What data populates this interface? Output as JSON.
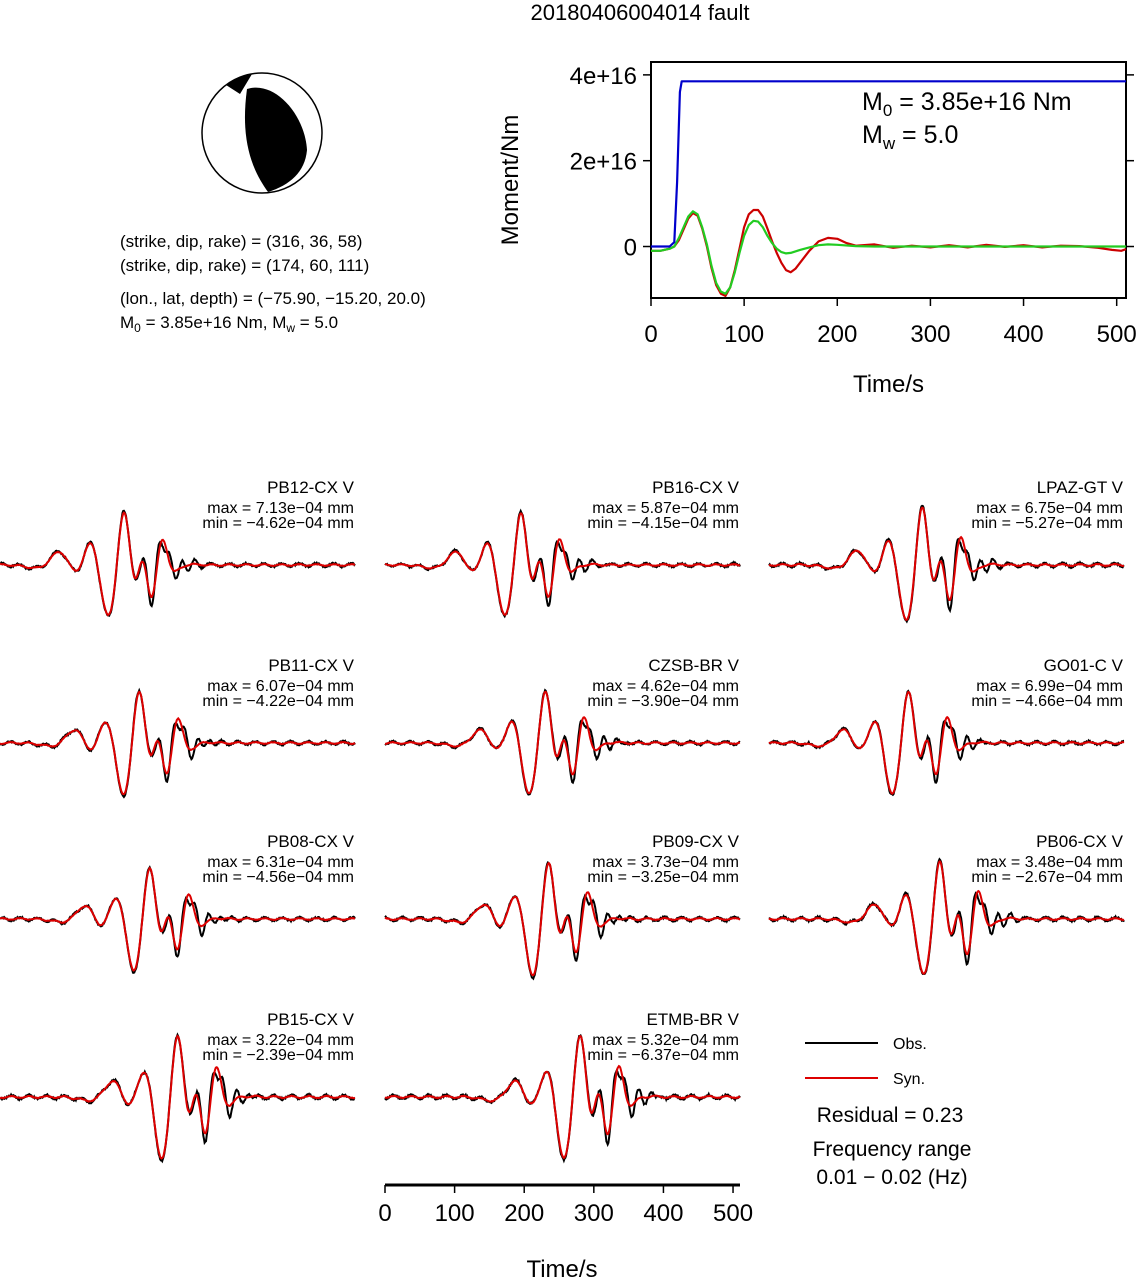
{
  "title": "20180406004014 fault",
  "focal": {
    "line1": "(strike, dip, rake) = (316, 36, 58)",
    "line2": "(strike, dip, rake) = (174, 60, 111)",
    "line3": "(lon., lat, depth) = (−75.90, −15.20, 20.0)",
    "line4_m0": "M",
    "line4_m0_sub": "0",
    "line4_m0_val": " = 3.85e+16 Nm, M",
    "line4_mw_sub": "w",
    "line4_mw_val": " = 5.0"
  },
  "moment": {
    "ylabel": "Moment/Nm",
    "xlabel": "Time/s",
    "yticks": [
      "4e+16",
      "2e+16",
      "0"
    ],
    "ytick_values": [
      4e+16,
      2e+16,
      0
    ],
    "xticks": [
      "0",
      "100",
      "200",
      "300",
      "400",
      "500"
    ],
    "xtick_values": [
      0,
      100,
      200,
      300,
      400,
      500
    ],
    "xlim": [
      0,
      510
    ],
    "ylim": [
      -1.2e+16,
      4.3e+16
    ],
    "m0_label": "M",
    "m0_sub": "0",
    "m0_value": " = 3.85e+16 Nm",
    "mw_label": "M",
    "mw_sub": "w",
    "mw_value": " = 5.0"
  },
  "chart_data": {
    "type": "line",
    "moment_function": {
      "x": [
        0,
        20,
        25,
        28,
        31,
        33,
        36,
        510
      ],
      "y": [
        0,
        0,
        1000000000000000.0,
        1.5e+16,
        3.6e+16,
        3.85e+16,
        3.85e+16,
        3.85e+16
      ],
      "color": "#0000cc"
    },
    "moment_rate_green": {
      "color": "#22cc22",
      "x": [
        0,
        10,
        20,
        25,
        30,
        35,
        40,
        45,
        50,
        55,
        60,
        65,
        70,
        75,
        80,
        85,
        90,
        95,
        100,
        105,
        110,
        115,
        120,
        125,
        130,
        135,
        140,
        145,
        150,
        160,
        170,
        180,
        190,
        200,
        220,
        240,
        260,
        280,
        300,
        350,
        400,
        450,
        510
      ],
      "y": [
        -1000000000000000.0,
        -1000000000000000.0,
        -500000000000000.0,
        0,
        2000000000000000.0,
        4500000000000000.0,
        7000000000000000.0,
        8200000000000000.0,
        7500000000000000.0,
        4500000000000000.0,
        500000000000000.0,
        -4500000000000000.0,
        -8500000000000000.0,
        -1.05e+16,
        -1.1e+16,
        -9500000000000000.0,
        -6000000000000000.0,
        -1500000000000000.0,
        2500000000000000.0,
        5000000000000000.0,
        6000000000000000.0,
        5800000000000000.0,
        4500000000000000.0,
        2500000000000000.0,
        800000000000000.0,
        -500000000000000.0,
        -1300000000000000.0,
        -1600000000000000.0,
        -1500000000000000.0,
        -800000000000000.0,
        -200000000000000.0,
        300000000000000.0,
        500000000000000.0,
        400000000000000.0,
        100000000000000.0,
        0,
        0,
        0,
        0,
        0,
        0,
        0,
        0
      ]
    },
    "moment_rate_red": {
      "color": "#cc0000",
      "x": [
        0,
        10,
        20,
        25,
        30,
        35,
        40,
        45,
        50,
        55,
        60,
        65,
        70,
        75,
        80,
        85,
        90,
        95,
        100,
        105,
        110,
        115,
        120,
        125,
        130,
        135,
        140,
        145,
        150,
        155,
        160,
        170,
        180,
        190,
        200,
        210,
        220,
        240,
        260,
        280,
        300,
        320,
        340,
        360,
        380,
        400,
        420,
        440,
        460,
        480,
        495,
        505,
        510
      ],
      "y": [
        -1000000000000000.0,
        -1000000000000000.0,
        -500000000000000.0,
        0,
        1500000000000000.0,
        4000000000000000.0,
        6500000000000000.0,
        7800000000000000.0,
        7200000000000000.0,
        4200000000000000.0,
        0.0,
        -5000000000000000.0,
        -9000000000000000.0,
        -1.1e+16,
        -1.15e+16,
        -9500000000000000.0,
        -5500000000000000.0,
        -500000000000000.0,
        4500000000000000.0,
        7500000000000000.0,
        8500000000000000.0,
        8500000000000000.0,
        7000000000000000.0,
        4200000000000000.0,
        1200000000000000.0,
        -1500000000000000.0,
        -3800000000000000.0,
        -5500000000000000.0,
        -6000000000000000.0,
        -5200000000000000.0,
        -3800000000000000.0,
        -1000000000000000.0,
        1200000000000000.0,
        2000000000000000.0,
        1800000000000000.0,
        800000000000000.0,
        200000000000000.0,
        500000000000000.0,
        -300000000000000.0,
        200000000000000.0,
        -200000000000000.0,
        300000000000000.0,
        -200000000000000.0,
        400000000000000.0,
        -100000000000000.0,
        300000000000000.0,
        -200000000000000.0,
        200000000000000.0,
        100000000000000.0,
        -300000000000000.0,
        -800000000000000.0,
        -1000000000000000.0,
        -600000000000000.0
      ]
    },
    "stations": [
      {
        "name": "PB12-CX V",
        "max": "max = 7.13e−04 mm",
        "min": "min = −4.62e−04 mm",
        "center": 168,
        "seed": 1,
        "amp": 1.0
      },
      {
        "name": "PB16-CX V",
        "max": "max = 5.87e−04 mm",
        "min": "min = −4.15e−04 mm",
        "center": 185,
        "seed": 2,
        "amp": 1.0
      },
      {
        "name": "LPAZ-GT V",
        "max": "max = 6.75e−04 mm",
        "min": "min = −5.27e−04 mm",
        "center": 210,
        "seed": 3,
        "amp": 1.1
      },
      {
        "name": "PB11-CX V",
        "max": "max = 6.07e−04 mm",
        "min": "min = −4.22e−04 mm",
        "center": 190,
        "seed": 4,
        "amp": 1.0
      },
      {
        "name": "CZSB-BR V",
        "max": "max = 4.62e−04 mm",
        "min": "min = −3.90e−04 mm",
        "center": 220,
        "seed": 5,
        "amp": 1.0
      },
      {
        "name": "GO01-C V",
        "max": "max = 6.99e−04 mm",
        "min": "min = −4.66e−04 mm",
        "center": 190,
        "seed": 6,
        "amp": 1.0
      },
      {
        "name": "PB08-CX V",
        "max": "max = 6.31e−04 mm",
        "min": "min = −4.56e−04 mm",
        "center": 205,
        "seed": 7,
        "amp": 1.0
      },
      {
        "name": "PB09-CX V",
        "max": "max = 3.73e−04 mm",
        "min": "min = −3.25e−04 mm",
        "center": 225,
        "seed": 8,
        "amp": 1.1
      },
      {
        "name": "PB06-CX V",
        "max": "max = 3.48e−04 mm",
        "min": "min = −2.67e−04 mm",
        "center": 235,
        "seed": 9,
        "amp": 1.1
      },
      {
        "name": "PB15-CX V",
        "max": "max = 3.22e−04 mm",
        "min": "min = −2.39e−04 mm",
        "center": 245,
        "seed": 10,
        "amp": 1.2
      },
      {
        "name": "ETMB-BR V",
        "max": "max = 5.32e−04 mm",
        "min": "min = −6.37e−04 mm",
        "center": 270,
        "seed": 11,
        "amp": 1.2
      }
    ]
  },
  "waveform_axis": {
    "xlabel": "Time/s",
    "xticks": [
      "0",
      "100",
      "200",
      "300",
      "400",
      "500"
    ],
    "xtick_values": [
      0,
      100,
      200,
      300,
      400,
      500
    ],
    "xlim": [
      0,
      510
    ]
  },
  "legend": {
    "obs_label": "Obs.",
    "syn_label": "Syn.",
    "obs_color": "#000000",
    "syn_color": "#dd0000",
    "residual": "Residual = 0.23",
    "freq_title": "Frequency range",
    "freq_value": "0.01 − 0.02 (Hz)"
  }
}
